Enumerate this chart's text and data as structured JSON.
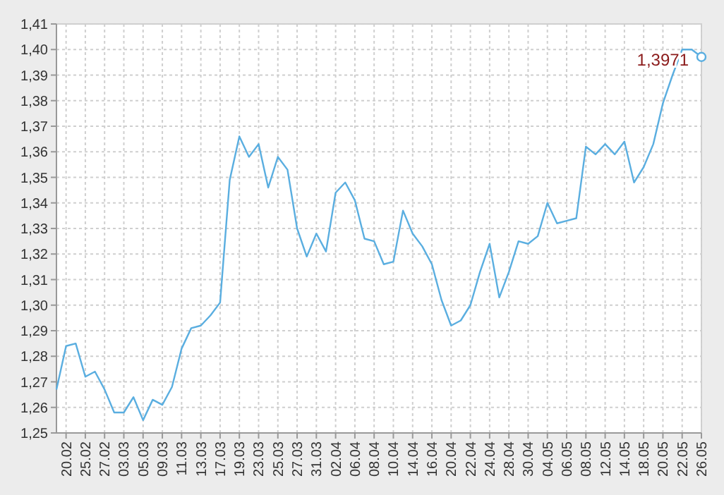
{
  "chart_data": {
    "type": "line",
    "categories": [
      null,
      "20.02",
      null,
      "25.02",
      null,
      "27.02",
      null,
      "03.03",
      null,
      "05.03",
      null,
      "09.03",
      null,
      "11.03",
      null,
      "13.03",
      null,
      "17.03",
      null,
      "19.03",
      null,
      "23.03",
      null,
      "25.03",
      null,
      "27.03",
      null,
      "31.03",
      null,
      "02.04",
      null,
      "06.04",
      null,
      "08.04",
      null,
      "10.04",
      null,
      "14.04",
      null,
      "16.04",
      null,
      "20.04",
      null,
      "22.04",
      null,
      "24.04",
      null,
      "28.04",
      null,
      "30.04",
      null,
      "04.05",
      null,
      "06.05",
      null,
      "08.05",
      null,
      "12.05",
      null,
      "14.05",
      null,
      "18.05",
      null,
      "20.05",
      null,
      "22.05",
      null,
      "26.05"
    ],
    "series": [
      {
        "color": "#5aaee0",
        "values": [
          1.267,
          1.284,
          1.285,
          1.272,
          1.274,
          1.267,
          1.258,
          1.258,
          1.264,
          1.255,
          1.263,
          1.261,
          1.268,
          1.283,
          1.291,
          1.292,
          1.296,
          1.301,
          1.349,
          1.366,
          1.358,
          1.363,
          1.346,
          1.358,
          1.353,
          1.33,
          1.319,
          1.328,
          1.321,
          1.344,
          1.348,
          1.341,
          1.326,
          1.325,
          1.316,
          1.317,
          1.337,
          1.328,
          1.323,
          1.316,
          1.302,
          1.292,
          1.294,
          1.3,
          1.313,
          1.324,
          1.303,
          1.313,
          1.325,
          1.324,
          1.327,
          1.34,
          1.332,
          1.333,
          1.334,
          1.362,
          1.359,
          1.363,
          1.359,
          1.364,
          1.348,
          1.354,
          1.363,
          1.379,
          1.39,
          1.4,
          1.4,
          1.3971
        ]
      }
    ],
    "ylim": [
      1.25,
      1.41
    ],
    "yticks": [
      {
        "value": 1.25,
        "label": "1,25"
      },
      {
        "value": 1.26,
        "label": "1,26"
      },
      {
        "value": 1.27,
        "label": "1,27"
      },
      {
        "value": 1.28,
        "label": "1,28"
      },
      {
        "value": 1.29,
        "label": "1,29"
      },
      {
        "value": 1.3,
        "label": "1,30"
      },
      {
        "value": 1.31,
        "label": "1,31"
      },
      {
        "value": 1.32,
        "label": "1,32"
      },
      {
        "value": 1.33,
        "label": "1,33"
      },
      {
        "value": 1.34,
        "label": "1,34"
      },
      {
        "value": 1.35,
        "label": "1,35"
      },
      {
        "value": 1.36,
        "label": "1,36"
      },
      {
        "value": 1.37,
        "label": "1,37"
      },
      {
        "value": 1.38,
        "label": "1,38"
      },
      {
        "value": 1.39,
        "label": "1,39"
      },
      {
        "value": 1.4,
        "label": "1,40"
      },
      {
        "value": 1.41,
        "label": "1,41"
      }
    ],
    "grid": true,
    "annotations": [
      {
        "text": "1,3971",
        "x": "26.05",
        "y": 1.3971
      }
    ]
  }
}
